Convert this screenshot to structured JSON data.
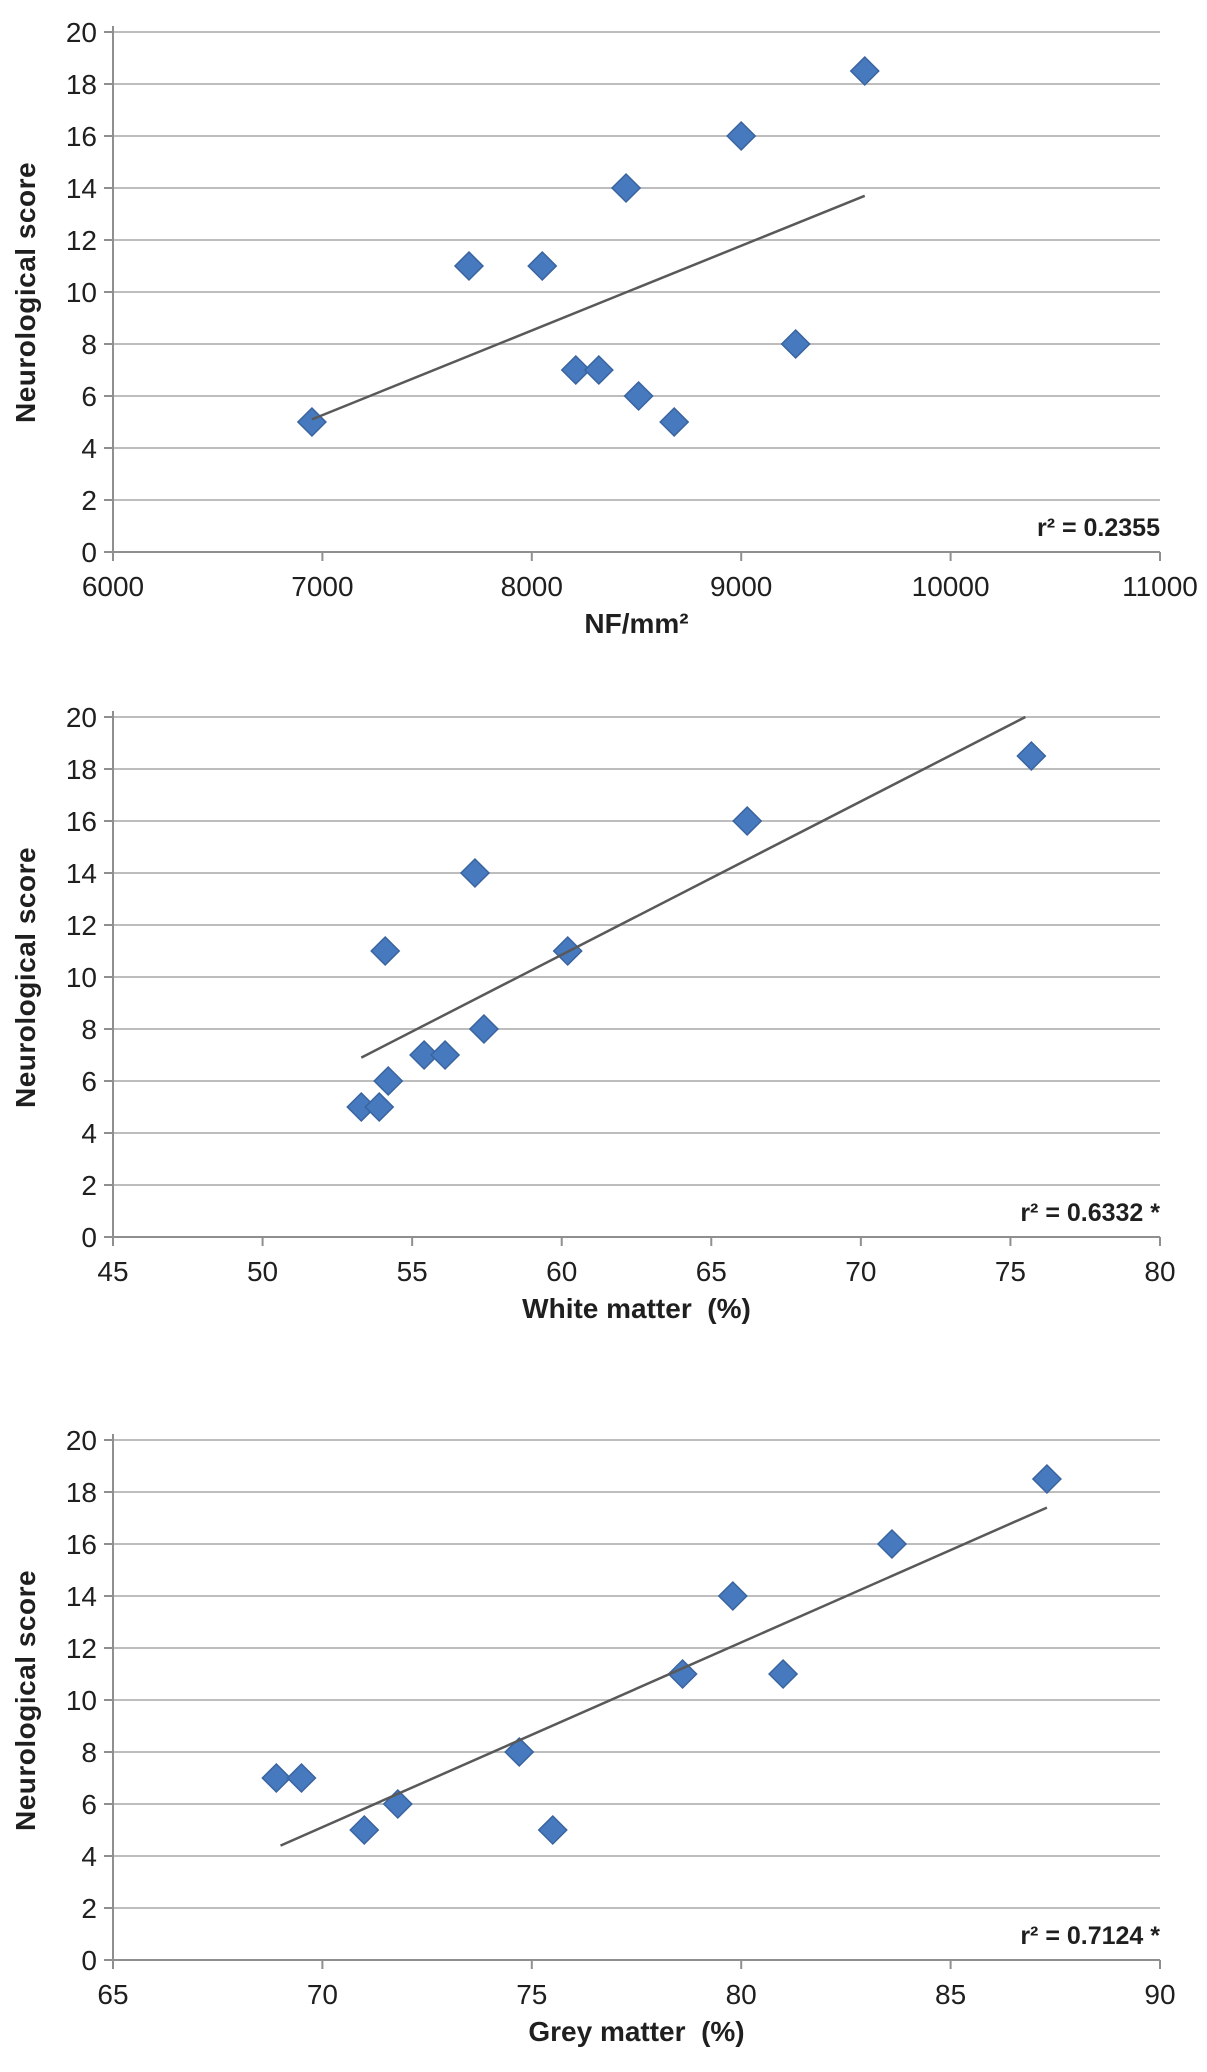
{
  "figure": {
    "y_axis_title": "Neurological score",
    "marker_color": "#4679BD",
    "marker_edge_color": "#3A64A0",
    "trendline_color": "#595959",
    "gridline_color": "#BDBDBD",
    "axis_color": "#8F8F8F",
    "text_color": "#1f1f1f",
    "chart_data": [
      {
        "type": "scatter",
        "title": "",
        "xlabel": "NF/mm²",
        "ylabel": "Neurological score",
        "r2_label": "r² = 0.2355",
        "r2": 0.2355,
        "significant": false,
        "xlim": [
          6000,
          11000
        ],
        "ylim": [
          0,
          20
        ],
        "x_ticks": [
          6000,
          7000,
          8000,
          9000,
          10000,
          11000
        ],
        "y_ticks": [
          0,
          2,
          4,
          6,
          8,
          10,
          12,
          14,
          16,
          18,
          20
        ],
        "grid": "horizontal",
        "legend": "none",
        "points": [
          [
            6950,
            5
          ],
          [
            7700,
            11
          ],
          [
            8050,
            11
          ],
          [
            8210,
            7
          ],
          [
            8320,
            7
          ],
          [
            8450,
            14
          ],
          [
            8510,
            6
          ],
          [
            8680,
            5
          ],
          [
            9000,
            16
          ],
          [
            9260,
            8
          ],
          [
            9590,
            18.5
          ]
        ],
        "trendline": {
          "x1": 6950,
          "y1": 5.1,
          "x2": 9590,
          "y2": 13.7
        }
      },
      {
        "type": "scatter",
        "title": "",
        "xlabel": "White matter  (%)",
        "ylabel": "Neurological score",
        "r2_label": "r² = 0.6332 *",
        "r2": 0.6332,
        "significant": true,
        "xlim": [
          45,
          80
        ],
        "ylim": [
          0,
          20
        ],
        "x_ticks": [
          45,
          50,
          55,
          60,
          65,
          70,
          75,
          80
        ],
        "y_ticks": [
          0,
          2,
          4,
          6,
          8,
          10,
          12,
          14,
          16,
          18,
          20
        ],
        "grid": "horizontal",
        "legend": "none",
        "points": [
          [
            53.3,
            5
          ],
          [
            53.9,
            5
          ],
          [
            54.2,
            6
          ],
          [
            54.1,
            11
          ],
          [
            55.4,
            7
          ],
          [
            56.1,
            7
          ],
          [
            57.1,
            14
          ],
          [
            57.4,
            8
          ],
          [
            60.2,
            11
          ],
          [
            66.2,
            16
          ],
          [
            75.7,
            18.5
          ]
        ],
        "trendline": {
          "x1": 53.3,
          "y1": 6.9,
          "x2": 75.5,
          "y2": 20.0
        }
      },
      {
        "type": "scatter",
        "title": "",
        "xlabel": "Grey matter  (%)",
        "ylabel": "Neurological score",
        "r2_label": "r² = 0.7124 *",
        "r2": 0.7124,
        "significant": true,
        "xlim": [
          65,
          90
        ],
        "ylim": [
          0,
          20
        ],
        "x_ticks": [
          65,
          70,
          75,
          80,
          85,
          90
        ],
        "y_ticks": [
          0,
          2,
          4,
          6,
          8,
          10,
          12,
          14,
          16,
          18,
          20
        ],
        "grid": "horizontal",
        "legend": "none",
        "points": [
          [
            68.9,
            7
          ],
          [
            69.5,
            7
          ],
          [
            71.0,
            5
          ],
          [
            71.8,
            6
          ],
          [
            74.7,
            8
          ],
          [
            75.5,
            5
          ],
          [
            78.6,
            11
          ],
          [
            79.8,
            14
          ],
          [
            81.0,
            11
          ],
          [
            83.6,
            16
          ],
          [
            87.3,
            18.5
          ]
        ],
        "trendline": {
          "x1": 69.0,
          "y1": 4.4,
          "x2": 87.3,
          "y2": 17.4
        }
      }
    ]
  }
}
